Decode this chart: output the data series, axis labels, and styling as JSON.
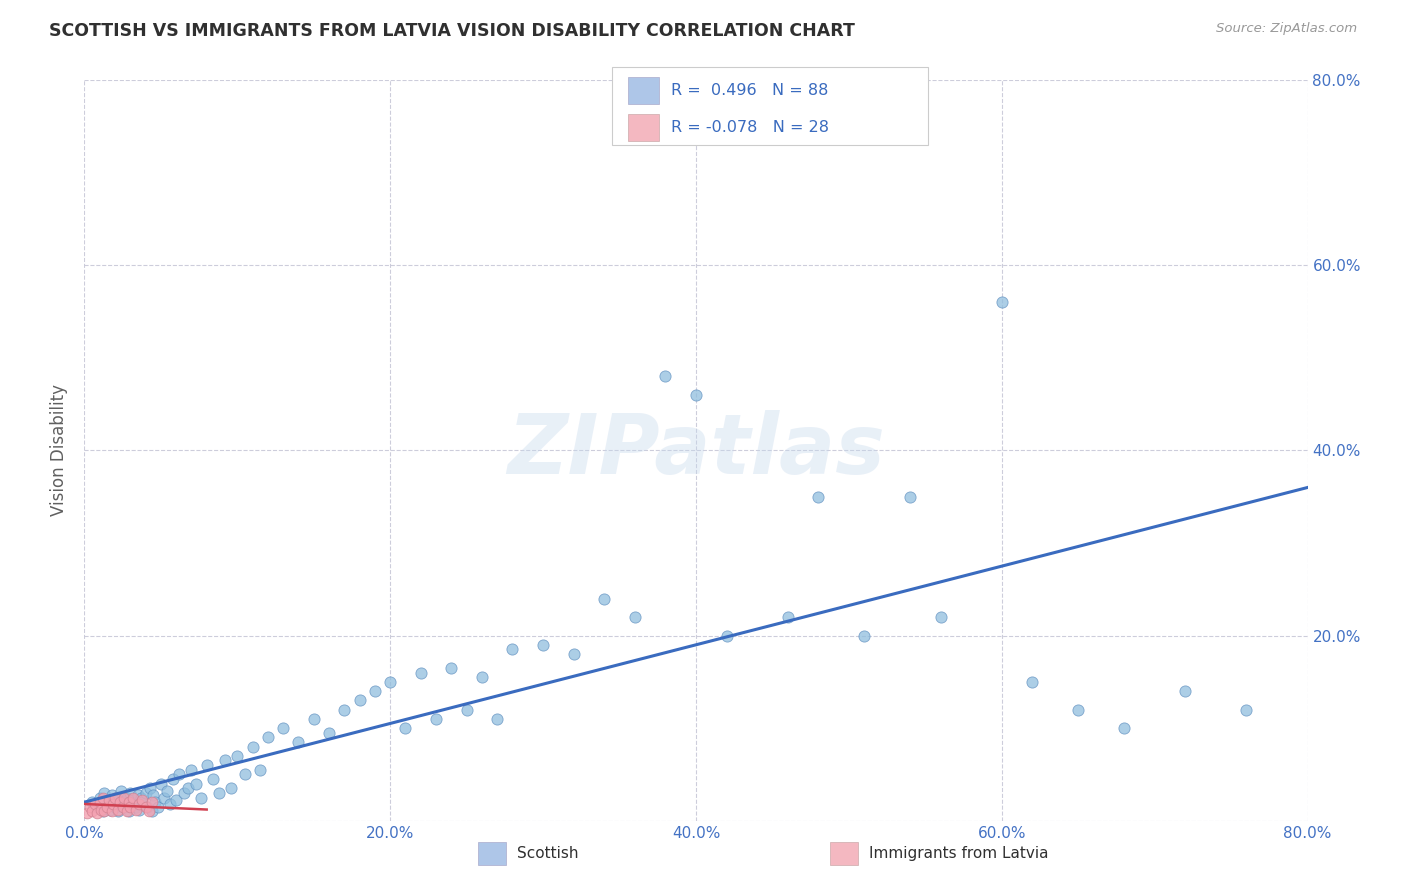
{
  "title": "SCOTTISH VS IMMIGRANTS FROM LATVIA VISION DISABILITY CORRELATION CHART",
  "source": "Source: ZipAtlas.com",
  "ylabel_label": "Vision Disability",
  "x_min": 0.0,
  "x_max": 0.8,
  "y_min": 0.0,
  "y_max": 0.8,
  "x_ticks": [
    0.0,
    0.2,
    0.4,
    0.6,
    0.8
  ],
  "y_ticks": [
    0.0,
    0.2,
    0.4,
    0.6,
    0.8
  ],
  "x_tick_labels": [
    "0.0%",
    "20.0%",
    "40.0%",
    "60.0%",
    "80.0%"
  ],
  "right_y_tick_labels": [
    "",
    "20.0%",
    "40.0%",
    "60.0%",
    "80.0%"
  ],
  "legend_items": [
    {
      "label": "Scottish",
      "color": "#aec6e8",
      "R": 0.496,
      "N": 88
    },
    {
      "label": "Immigrants from Latvia",
      "color": "#f4b8c1",
      "R": -0.078,
      "N": 28
    }
  ],
  "watermark": "ZIPatlas",
  "scatter_blue_color": "#90bede",
  "scatter_pink_color": "#f4a0b0",
  "trend_blue_color": "#3a6bbf",
  "trend_pink_color": "#d04050",
  "background_color": "#ffffff",
  "grid_color": "#c8c8d8",
  "title_color": "#303030",
  "axis_label_color": "#606060",
  "tick_color": "#4472c4",
  "blue_scatter_x": [
    0.005,
    0.008,
    0.01,
    0.012,
    0.013,
    0.015,
    0.016,
    0.017,
    0.018,
    0.02,
    0.021,
    0.022,
    0.024,
    0.025,
    0.026,
    0.028,
    0.029,
    0.03,
    0.031,
    0.032,
    0.034,
    0.035,
    0.036,
    0.037,
    0.038,
    0.04,
    0.041,
    0.043,
    0.044,
    0.045,
    0.046,
    0.048,
    0.05,
    0.052,
    0.054,
    0.056,
    0.058,
    0.06,
    0.062,
    0.065,
    0.068,
    0.07,
    0.073,
    0.076,
    0.08,
    0.084,
    0.088,
    0.092,
    0.096,
    0.1,
    0.105,
    0.11,
    0.115,
    0.12,
    0.13,
    0.14,
    0.15,
    0.16,
    0.17,
    0.18,
    0.19,
    0.2,
    0.21,
    0.22,
    0.23,
    0.24,
    0.25,
    0.26,
    0.27,
    0.28,
    0.3,
    0.32,
    0.34,
    0.36,
    0.38,
    0.4,
    0.42,
    0.46,
    0.48,
    0.51,
    0.54,
    0.56,
    0.6,
    0.62,
    0.65,
    0.68,
    0.72,
    0.76
  ],
  "blue_scatter_y": [
    0.02,
    0.015,
    0.025,
    0.01,
    0.03,
    0.018,
    0.022,
    0.012,
    0.028,
    0.015,
    0.025,
    0.01,
    0.032,
    0.02,
    0.015,
    0.025,
    0.01,
    0.03,
    0.018,
    0.022,
    0.015,
    0.028,
    0.012,
    0.025,
    0.02,
    0.03,
    0.015,
    0.035,
    0.01,
    0.028,
    0.02,
    0.015,
    0.04,
    0.025,
    0.032,
    0.018,
    0.045,
    0.022,
    0.05,
    0.03,
    0.035,
    0.055,
    0.04,
    0.025,
    0.06,
    0.045,
    0.03,
    0.065,
    0.035,
    0.07,
    0.05,
    0.08,
    0.055,
    0.09,
    0.1,
    0.085,
    0.11,
    0.095,
    0.12,
    0.13,
    0.14,
    0.15,
    0.1,
    0.16,
    0.11,
    0.165,
    0.12,
    0.155,
    0.11,
    0.185,
    0.19,
    0.18,
    0.24,
    0.22,
    0.48,
    0.46,
    0.2,
    0.22,
    0.35,
    0.2,
    0.35,
    0.22,
    0.56,
    0.15,
    0.12,
    0.1,
    0.14,
    0.12
  ],
  "pink_scatter_x": [
    0.002,
    0.004,
    0.005,
    0.007,
    0.008,
    0.01,
    0.011,
    0.012,
    0.013,
    0.015,
    0.016,
    0.018,
    0.019,
    0.02,
    0.022,
    0.023,
    0.025,
    0.026,
    0.028,
    0.029,
    0.03,
    0.032,
    0.034,
    0.036,
    0.038,
    0.04,
    0.042,
    0.044
  ],
  "pink_scatter_y": [
    0.008,
    0.015,
    0.01,
    0.018,
    0.008,
    0.02,
    0.012,
    0.025,
    0.01,
    0.015,
    0.022,
    0.01,
    0.018,
    0.025,
    0.012,
    0.02,
    0.015,
    0.025,
    0.01,
    0.02,
    0.015,
    0.025,
    0.012,
    0.018,
    0.022,
    0.015,
    0.01,
    0.02
  ],
  "blue_trend_x": [
    0.0,
    0.8
  ],
  "blue_trend_y": [
    0.02,
    0.36
  ],
  "pink_trend_x": [
    0.0,
    0.08
  ],
  "pink_trend_y": [
    0.018,
    0.012
  ]
}
